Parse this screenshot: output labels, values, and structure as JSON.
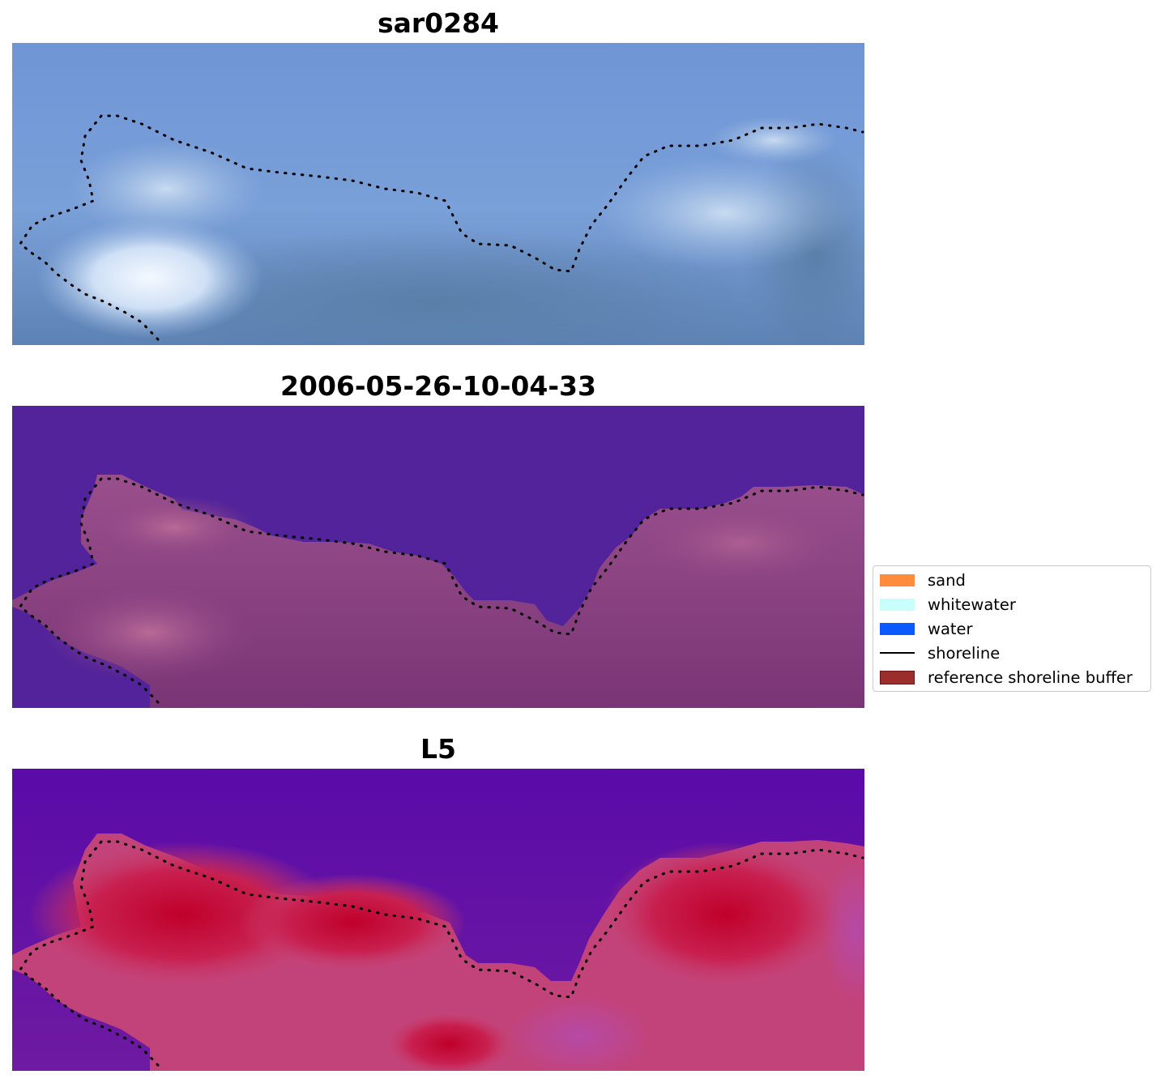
{
  "panels": [
    {
      "title": "sar0284"
    },
    {
      "title": "2006-05-26-10-04-33"
    },
    {
      "title": "L5"
    }
  ],
  "legend": {
    "items": [
      {
        "label": "sand",
        "type": "patch",
        "color": "#ff8c3c"
      },
      {
        "label": "whitewater",
        "type": "patch",
        "color": "#c8fffc"
      },
      {
        "label": "water",
        "type": "patch",
        "color": "#0a5aff"
      },
      {
        "label": "shoreline",
        "type": "line",
        "color": "#000000"
      },
      {
        "label": "reference shoreline buffer",
        "type": "patch",
        "color": "#9b2d2d",
        "edge": "#6b1515"
      }
    ]
  },
  "colors": {
    "water_class": "#52239a",
    "land_class": "#8b3d7e",
    "shoreline": "#000000"
  }
}
